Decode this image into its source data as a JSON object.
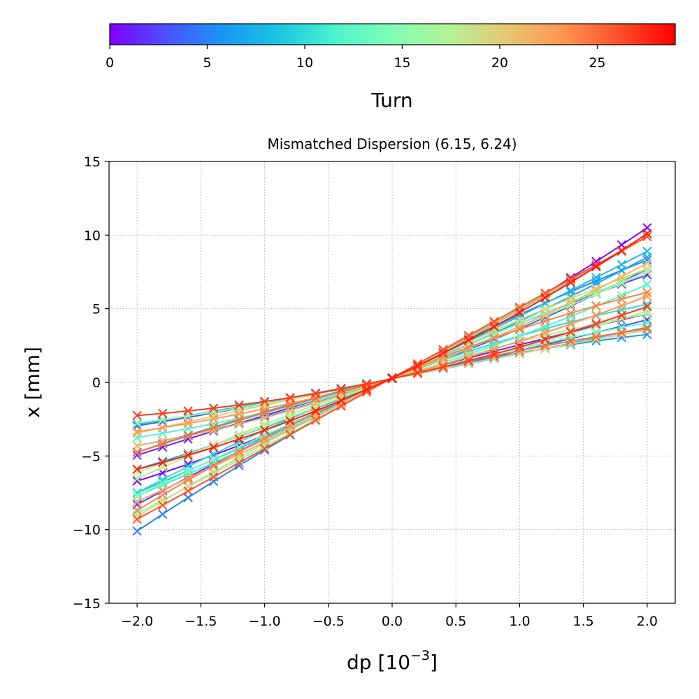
{
  "chart_data": {
    "type": "line",
    "title": "Mismatched Dispersion (6.15, 6.24)",
    "xlabel": "dp [10",
    "xlabel_exponent": "−3",
    "xlabel_suffix": "]",
    "ylabel": "x [mm]",
    "xlim": [
      -2.22,
      2.22
    ],
    "ylim": [
      -15,
      15
    ],
    "xticks": [
      -2.0,
      -1.5,
      -1.0,
      -0.5,
      0.0,
      0.5,
      1.0,
      1.5,
      2.0
    ],
    "xtick_labels": [
      "−2.0",
      "−1.5",
      "−1.0",
      "−0.5",
      "0.0",
      "0.5",
      "1.0",
      "1.5",
      "2.0"
    ],
    "yticks": [
      -15,
      -10,
      -5,
      0,
      5,
      10,
      15
    ],
    "ytick_labels": [
      "−15",
      "−10",
      "−5",
      "0",
      "5",
      "10",
      "15"
    ],
    "grid": true,
    "markers": "x",
    "colormap": "rainbow",
    "colorbar": {
      "label": "Turn",
      "range": [
        0,
        29
      ],
      "ticks": [
        0,
        5,
        10,
        15,
        20,
        25
      ],
      "tick_labels": [
        "0",
        "5",
        "10",
        "15",
        "20",
        "25"
      ],
      "colors": [
        "#8000ff",
        "#4c50fc",
        "#1996f3",
        "#1ac7e3",
        "#4df3ce",
        "#80ffb4",
        "#b3f396",
        "#e6c874",
        "#ff9650",
        "#ff502a",
        "#ff0000"
      ]
    },
    "x": [
      -2.0,
      -1.8,
      -1.6,
      -1.4,
      -1.2,
      -1.0,
      -0.8,
      -0.6,
      -0.4,
      -0.2,
      0.0,
      0.2,
      0.4,
      0.6,
      0.8,
      1.0,
      1.2,
      1.4,
      1.6,
      1.8,
      2.0
    ],
    "turns": [
      {
        "turn": 0,
        "slope": 4.3,
        "curv": 0.4,
        "offset": 0.3
      },
      {
        "turn": 1,
        "slope": 2.4,
        "curv": -0.1,
        "offset": 0.25
      },
      {
        "turn": 2,
        "slope": 3.9,
        "curv": -0.2,
        "offset": 0.3
      },
      {
        "turn": 3,
        "slope": 1.8,
        "curv": 0.1,
        "offset": 0.25
      },
      {
        "turn": 4,
        "slope": 3.0,
        "curv": 0.35,
        "offset": 0.3
      },
      {
        "turn": 5,
        "slope": 4.6,
        "curv": -0.3,
        "offset": 0.3
      },
      {
        "turn": 6,
        "slope": 2.0,
        "curv": -0.25,
        "offset": 0.25
      },
      {
        "turn": 7,
        "slope": 3.6,
        "curv": 0.25,
        "offset": 0.3
      },
      {
        "turn": 8,
        "slope": 4.1,
        "curv": 0.1,
        "offset": 0.3
      },
      {
        "turn": 9,
        "slope": 1.65,
        "curv": 0.05,
        "offset": 0.25
      },
      {
        "turn": 10,
        "slope": 3.2,
        "curv": -0.35,
        "offset": 0.3
      },
      {
        "turn": 11,
        "slope": 4.4,
        "curv": 0.2,
        "offset": 0.3
      },
      {
        "turn": 12,
        "slope": 2.6,
        "curv": 0.3,
        "offset": 0.25
      },
      {
        "turn": 13,
        "slope": 2.2,
        "curv": -0.15,
        "offset": 0.25
      },
      {
        "turn": 14,
        "slope": 3.8,
        "curv": -0.1,
        "offset": 0.3
      },
      {
        "turn": 15,
        "slope": 4.7,
        "curv": 0.05,
        "offset": 0.3
      },
      {
        "turn": 16,
        "slope": 1.9,
        "curv": 0.2,
        "offset": 0.25
      },
      {
        "turn": 17,
        "slope": 3.4,
        "curv": 0.1,
        "offset": 0.3
      },
      {
        "turn": 18,
        "slope": 2.8,
        "curv": -0.3,
        "offset": 0.25
      },
      {
        "turn": 19,
        "slope": 4.2,
        "curv": -0.25,
        "offset": 0.3
      },
      {
        "turn": 20,
        "slope": 1.75,
        "curv": -0.05,
        "offset": 0.25
      },
      {
        "turn": 21,
        "slope": 3.1,
        "curv": 0.4,
        "offset": 0.3
      },
      {
        "turn": 22,
        "slope": 4.5,
        "curv": 0.15,
        "offset": 0.3
      },
      {
        "turn": 23,
        "slope": 2.3,
        "curv": 0.25,
        "offset": 0.25
      },
      {
        "turn": 24,
        "slope": 3.7,
        "curv": -0.4,
        "offset": 0.3
      },
      {
        "turn": 25,
        "slope": 2.1,
        "curv": -0.2,
        "offset": 0.25
      },
      {
        "turn": 26,
        "slope": 4.8,
        "curv": 0.0,
        "offset": 0.3
      },
      {
        "turn": 27,
        "slope": 1.85,
        "curv": 0.3,
        "offset": 0.25
      },
      {
        "turn": 28,
        "slope": 4.0,
        "curv": 0.45,
        "offset": 0.3
      }
    ]
  }
}
